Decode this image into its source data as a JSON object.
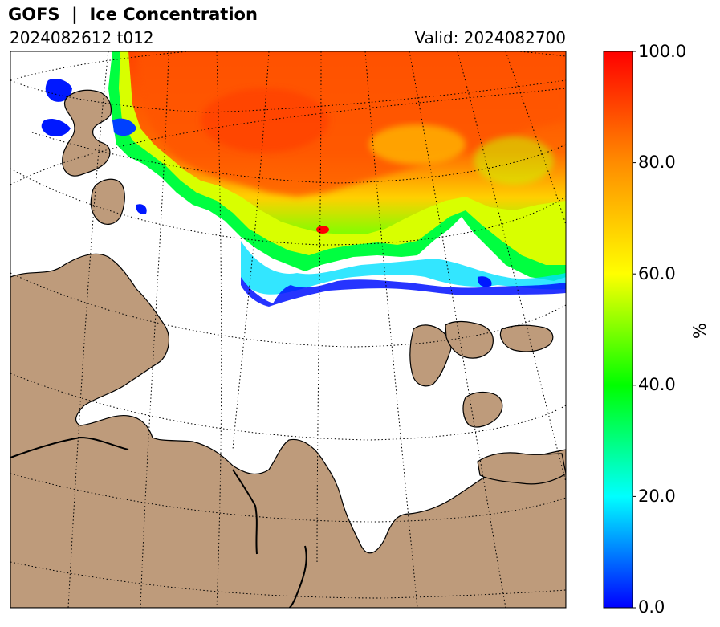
{
  "header": {
    "title": "GOFS  |  Ice Concentration",
    "run": "2024082612 t012",
    "valid": "Valid: 2024082700"
  },
  "colorbar": {
    "label": "%",
    "min": 0,
    "max": 100,
    "ticks": [
      "0.0",
      "20.0",
      "40.0",
      "60.0",
      "80.0",
      "100.0"
    ],
    "stops": [
      "#0000ff",
      "#00ffff",
      "#00ff00",
      "#ffff00",
      "#ff8c00",
      "#ff0000"
    ]
  },
  "map": {
    "land_color": "#be9b7b",
    "ocean_color": "#ffffff",
    "graticule": "dotted"
  }
}
